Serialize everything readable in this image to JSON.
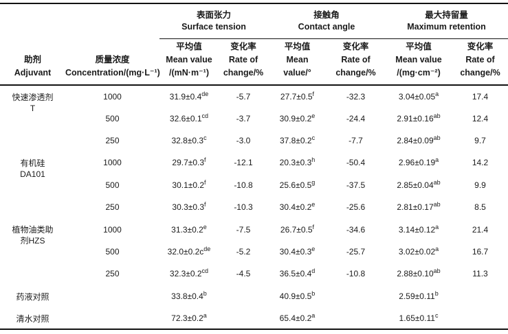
{
  "chart_data": {
    "type": "table",
    "column_groups": [
      {
        "zh": "表面张力",
        "en": "Surface tension"
      },
      {
        "zh": "接触角",
        "en": "Contact angle"
      },
      {
        "zh": "最大持留量",
        "en": "Maximum retention"
      }
    ],
    "columns": {
      "adjuvant": {
        "zh": "助剂",
        "en": "Adjuvant"
      },
      "concentration": {
        "zh": "质量浓度",
        "en": "Concentration/(mg·L⁻¹)"
      },
      "st_mean": {
        "zh": "平均值",
        "en1": "Mean value",
        "en2": "/(mN·m⁻¹)"
      },
      "st_rate": {
        "zh": "变化率",
        "en1": "Rate of",
        "en2": "change/%"
      },
      "ca_mean": {
        "zh": "平均值",
        "en1": "Mean",
        "en2": "value/°"
      },
      "ca_rate": {
        "zh": "变化率",
        "en1": "Rate of",
        "en2": "change/%"
      },
      "mr_mean": {
        "zh": "平均值",
        "en1": "Mean value",
        "en2": "/(mg·cm⁻²)"
      },
      "mr_rate": {
        "zh": "变化率",
        "en1": "Rate of",
        "en2": "change/%"
      }
    },
    "rows": [
      {
        "adjuvant_lines": [
          "快速渗透剂",
          "T"
        ],
        "rowspan": 3,
        "cells": [
          {
            "t": "1000"
          },
          {
            "t": "31.9±0.4",
            "sup": "de"
          },
          {
            "t": "-5.7"
          },
          {
            "t": "27.7±0.5",
            "sup": "f"
          },
          {
            "t": "-32.3"
          },
          {
            "t": "3.04±0.05",
            "sup": "a"
          },
          {
            "t": "17.4"
          }
        ]
      },
      {
        "cells": [
          {
            "t": "500"
          },
          {
            "t": "32.6±0.1",
            "sup": "cd"
          },
          {
            "t": "-3.7"
          },
          {
            "t": "30.9±0.2",
            "sup": "e"
          },
          {
            "t": "-24.4"
          },
          {
            "t": "2.91±0.16",
            "sup": "ab"
          },
          {
            "t": "12.4"
          }
        ]
      },
      {
        "cells": [
          {
            "t": "250"
          },
          {
            "t": "32.8±0.3",
            "sup": "c"
          },
          {
            "t": "-3.0"
          },
          {
            "t": "37.8±0.2",
            "sup": "c"
          },
          {
            "t": "-7.7"
          },
          {
            "t": "2.84±0.09",
            "sup": "ab"
          },
          {
            "t": "9.7"
          }
        ]
      },
      {
        "adjuvant_lines": [
          "有机硅",
          "DA101"
        ],
        "rowspan": 3,
        "cells": [
          {
            "t": "1000"
          },
          {
            "t": "29.7±0.3",
            "sup": "f"
          },
          {
            "t": "-12.1"
          },
          {
            "t": "20.3±0.3",
            "sup": "h"
          },
          {
            "t": "-50.4"
          },
          {
            "t": "2.96±0.19",
            "sup": "a"
          },
          {
            "t": "14.2"
          }
        ]
      },
      {
        "cells": [
          {
            "t": "500"
          },
          {
            "t": "30.1±0.2",
            "sup": "f"
          },
          {
            "t": "-10.8"
          },
          {
            "t": "25.6±0.5",
            "sup": "g"
          },
          {
            "t": "-37.5"
          },
          {
            "t": "2.85±0.04",
            "sup": "ab"
          },
          {
            "t": "9.9"
          }
        ]
      },
      {
        "cells": [
          {
            "t": "250"
          },
          {
            "t": "30.3±0.3",
            "sup": "f"
          },
          {
            "t": "-10.3"
          },
          {
            "t": "30.4±0.2",
            "sup": "e"
          },
          {
            "t": "-25.6"
          },
          {
            "t": "2.81±0.17",
            "sup": "ab"
          },
          {
            "t": "8.5"
          }
        ]
      },
      {
        "adjuvant_lines": [
          "植物油类助",
          "剂HZS"
        ],
        "rowspan": 3,
        "cells": [
          {
            "t": "1000"
          },
          {
            "t": "31.3±0.2",
            "sup": "e"
          },
          {
            "t": "-7.5"
          },
          {
            "t": "26.7±0.5",
            "sup": "f"
          },
          {
            "t": "-34.6"
          },
          {
            "t": "3.14±0.12",
            "sup": "a"
          },
          {
            "t": "21.4"
          }
        ]
      },
      {
        "cells": [
          {
            "t": "500"
          },
          {
            "t": "32.0±0.2c",
            "sup": "de"
          },
          {
            "t": "-5.2"
          },
          {
            "t": "30.4±0.3",
            "sup": "e"
          },
          {
            "t": "-25.7"
          },
          {
            "t": "3.02±0.02",
            "sup": "a"
          },
          {
            "t": "16.7"
          }
        ]
      },
      {
        "cells": [
          {
            "t": "250"
          },
          {
            "t": "32.3±0.2",
            "sup": "cd"
          },
          {
            "t": "-4.5"
          },
          {
            "t": "36.5±0.4",
            "sup": "d"
          },
          {
            "t": "-10.8"
          },
          {
            "t": "2.88±0.10",
            "sup": "ab"
          },
          {
            "t": "11.3"
          }
        ]
      },
      {
        "adjuvant_lines": [
          "药液对照"
        ],
        "rowspan": 1,
        "cells": [
          {
            "t": ""
          },
          {
            "t": "33.8±0.4",
            "sup": "b"
          },
          {
            "t": ""
          },
          {
            "t": "40.9±0.5",
            "sup": "b"
          },
          {
            "t": ""
          },
          {
            "t": "2.59±0.11",
            "sup": "b"
          },
          {
            "t": ""
          }
        ]
      },
      {
        "adjuvant_lines": [
          "清水对照"
        ],
        "rowspan": 1,
        "cells": [
          {
            "t": ""
          },
          {
            "t": "72.3±0.2",
            "sup": "a"
          },
          {
            "t": ""
          },
          {
            "t": "65.4±0.2",
            "sup": "a"
          },
          {
            "t": ""
          },
          {
            "t": "1.65±0.11",
            "sup": "c"
          },
          {
            "t": ""
          }
        ]
      }
    ],
    "colors": {
      "text": "#1a1a1a",
      "rule": "#111111",
      "background": "#ffffff"
    }
  }
}
